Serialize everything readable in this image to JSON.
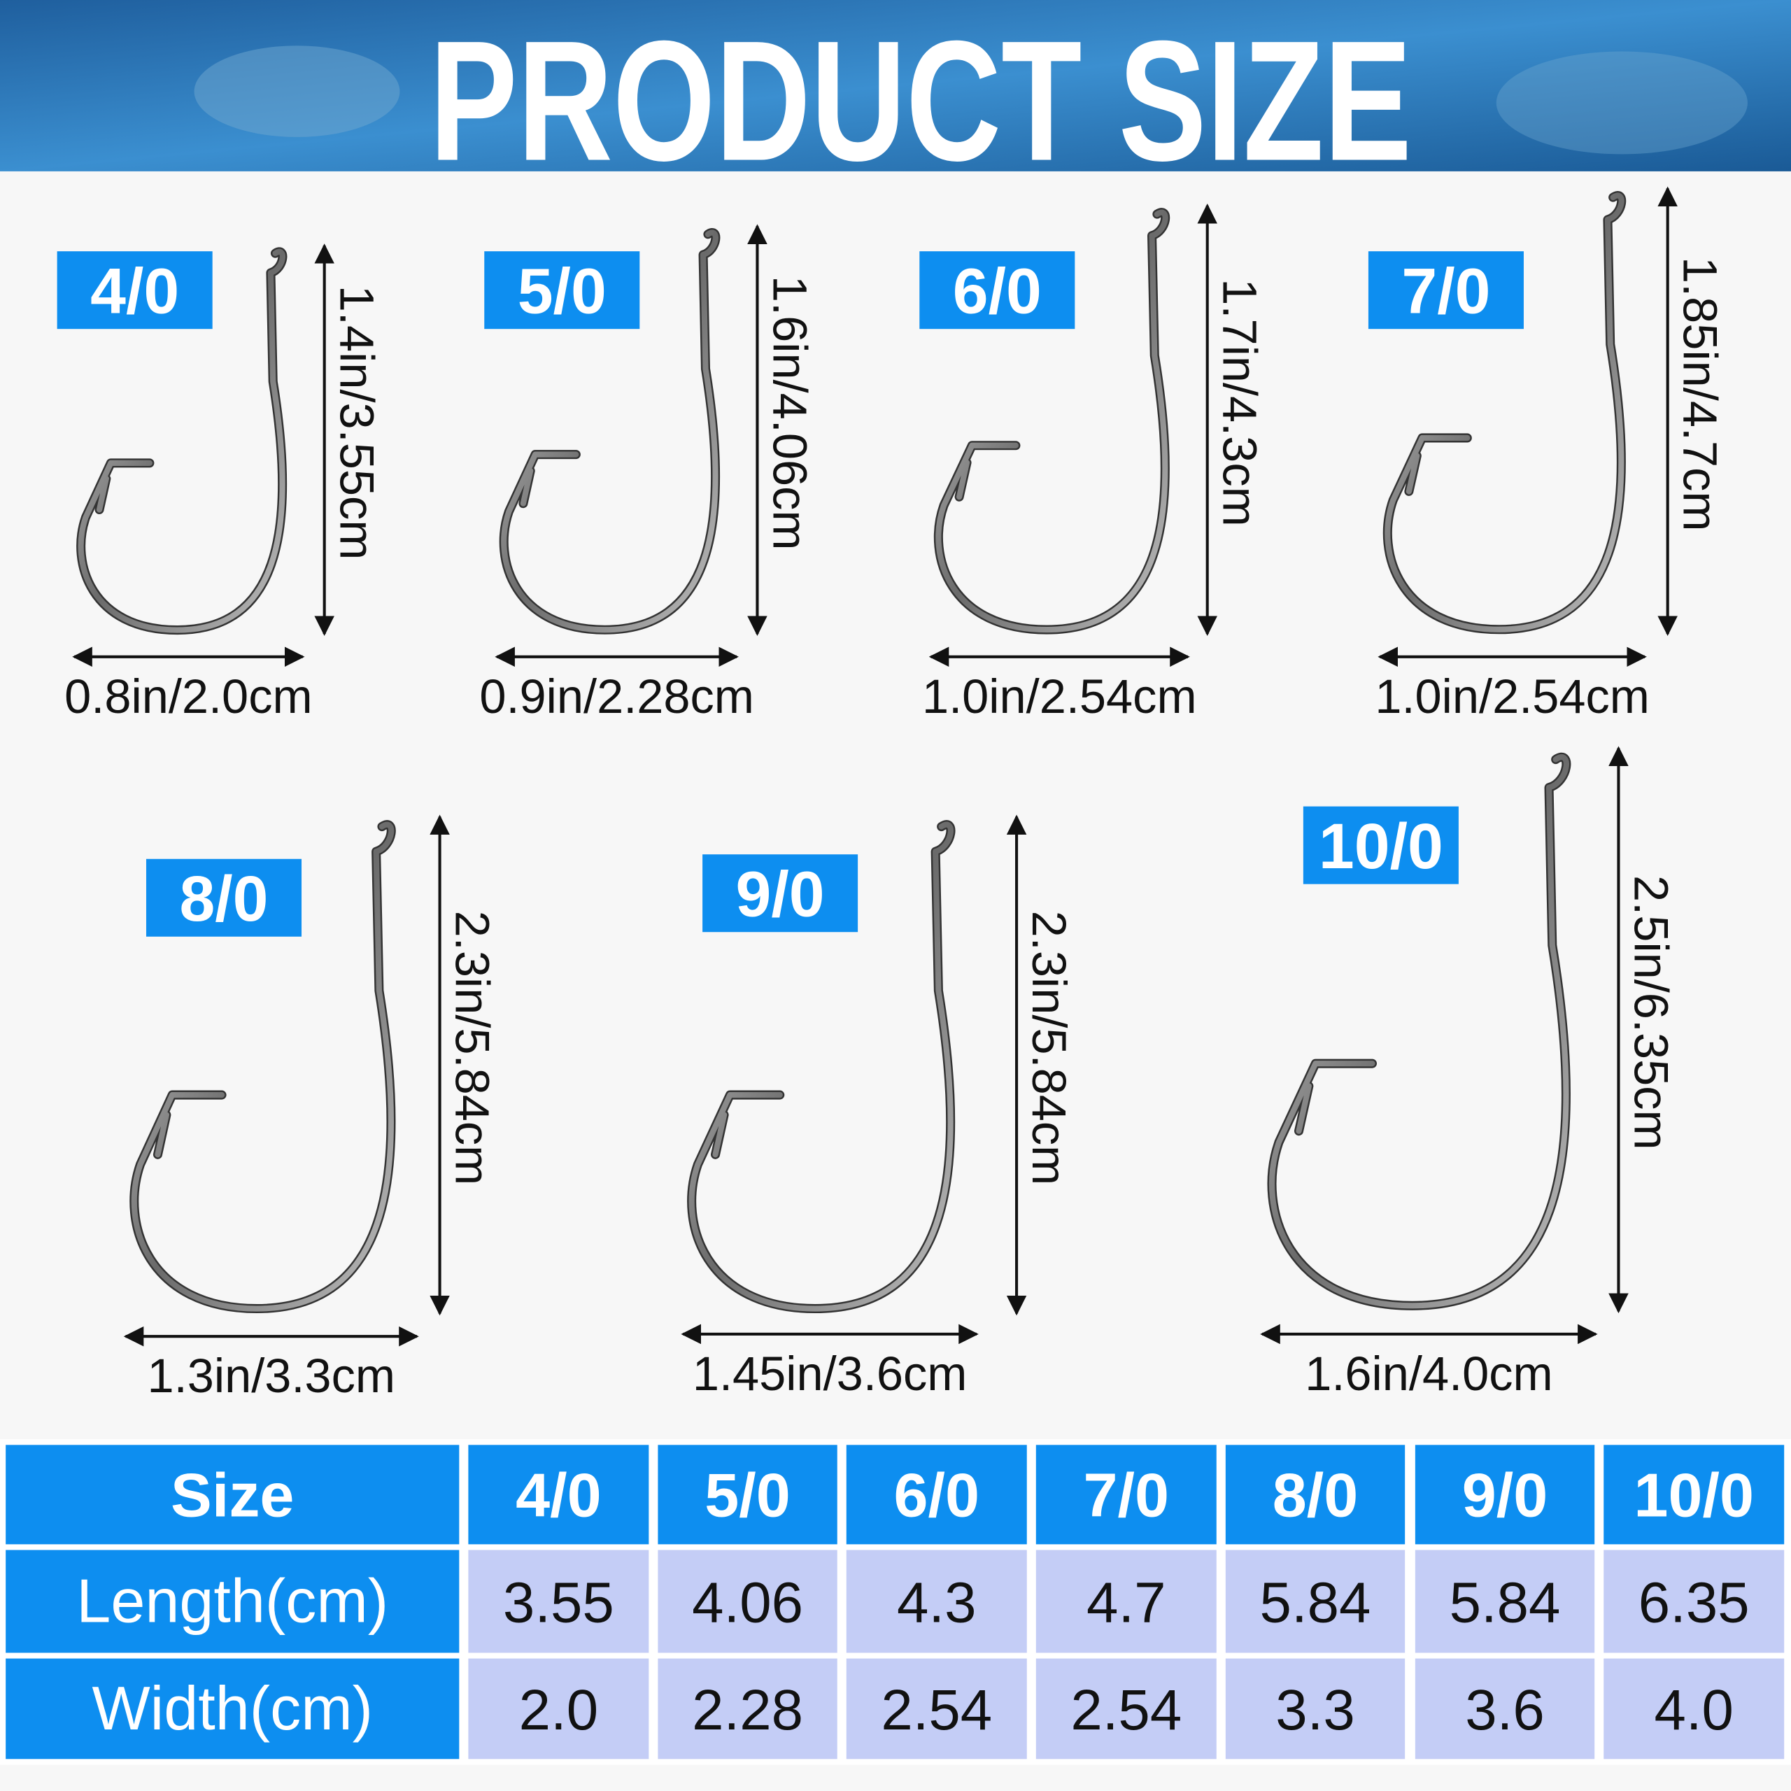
{
  "header": {
    "title": "PRODUCT SIZE"
  },
  "hooks": [
    {
      "size": "4/0",
      "length": "1.4in/3.55cm",
      "width": "0.8in/2.0cm"
    },
    {
      "size": "5/0",
      "length": "1.6in/4.06cm",
      "width": "0.9in/2.28cm"
    },
    {
      "size": "6/0",
      "length": "1.7in/4.3cm",
      "width": "1.0in/2.54cm"
    },
    {
      "size": "7/0",
      "length": "1.85in/4.7cm",
      "width": "1.0in/2.54cm"
    },
    {
      "size": "8/0",
      "length": "2.3in/5.84cm",
      "width": "1.3in/3.3cm"
    },
    {
      "size": "9/0",
      "length": "2.3in/5.84cm",
      "width": "1.45in/3.6cm"
    },
    {
      "size": "10/0",
      "length": "2.5in/6.35cm",
      "width": "1.6in/4.0cm"
    }
  ],
  "table": {
    "header": [
      "Size",
      "4/0",
      "5/0",
      "6/0",
      "7/0",
      "8/0",
      "9/0",
      "10/0"
    ],
    "rows": [
      [
        "Length(cm)",
        "3.55",
        "4.06",
        "4.3",
        "4.7",
        "5.84",
        "5.84",
        "6.35"
      ],
      [
        "Width(cm)",
        "2.0",
        "2.28",
        "2.54",
        "2.54",
        "3.3",
        "3.6",
        "4.0"
      ]
    ]
  }
}
